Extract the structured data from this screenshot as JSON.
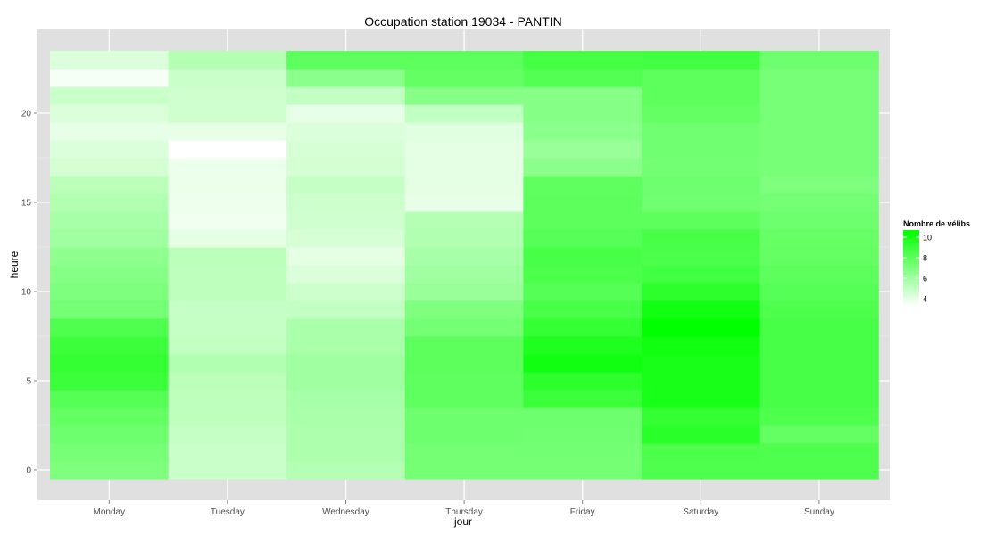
{
  "chart_data": {
    "type": "heatmap",
    "title": "Occupation station 19034 - PANTIN",
    "xlabel": "jour",
    "ylabel": "heure",
    "categories": [
      "Monday",
      "Tuesday",
      "Wednesday",
      "Thursday",
      "Friday",
      "Saturday",
      "Sunday"
    ],
    "y_ticks": [
      0,
      5,
      10,
      15,
      20
    ],
    "ylim": [
      -0.5,
      23.5
    ],
    "grid": true,
    "legend": {
      "title": "Nombre de vélibs",
      "ticks": [
        4,
        6,
        8,
        10
      ],
      "range": [
        3.2,
        10.7
      ],
      "low_color": "#ffffff",
      "high_color": "#00ff00",
      "placement": "right"
    },
    "values": [
      [
        7.0,
        4.8,
        5.4,
        7.3,
        7.3,
        8.4,
        8.4
      ],
      [
        7.2,
        4.8,
        5.6,
        7.3,
        7.3,
        8.5,
        8.4
      ],
      [
        7.5,
        4.9,
        5.6,
        7.5,
        7.4,
        9.5,
        7.8
      ],
      [
        7.8,
        5.1,
        5.7,
        7.5,
        7.5,
        9.2,
        8.4
      ],
      [
        8.2,
        5.1,
        5.8,
        7.9,
        9.0,
        10.0,
        8.6
      ],
      [
        9.0,
        5.2,
        6.0,
        7.9,
        9.4,
        10.0,
        8.6
      ],
      [
        9.2,
        5.5,
        6.0,
        8.0,
        10.2,
        10.0,
        8.6
      ],
      [
        9.0,
        5.0,
        5.7,
        8.0,
        9.8,
        10.2,
        8.6
      ],
      [
        8.4,
        4.9,
        5.7,
        7.3,
        9.2,
        10.7,
        8.6
      ],
      [
        7.3,
        4.9,
        5.0,
        7.0,
        8.6,
        10.2,
        8.4
      ],
      [
        7.0,
        5.1,
        4.7,
        6.2,
        8.2,
        9.4,
        8.2
      ],
      [
        6.8,
        5.1,
        4.3,
        6.0,
        8.5,
        8.8,
        8.0
      ],
      [
        6.5,
        5.2,
        4.0,
        5.8,
        8.6,
        8.5,
        7.8
      ],
      [
        6.0,
        4.0,
        4.4,
        5.5,
        8.2,
        8.6,
        7.7
      ],
      [
        5.8,
        3.6,
        4.6,
        5.4,
        8.0,
        8.0,
        7.5
      ],
      [
        5.5,
        3.7,
        4.7,
        3.9,
        8.0,
        7.4,
        7.3
      ],
      [
        5.2,
        3.8,
        4.9,
        4.0,
        7.9,
        7.5,
        7.0
      ],
      [
        4.5,
        3.8,
        4.5,
        4.0,
        6.6,
        7.3,
        7.2
      ],
      [
        4.3,
        3.2,
        4.4,
        4.0,
        6.2,
        7.4,
        7.2
      ],
      [
        3.9,
        3.9,
        4.3,
        4.1,
        6.6,
        7.4,
        7.2
      ],
      [
        4.3,
        4.6,
        3.9,
        5.0,
        6.8,
        7.8,
        7.2
      ],
      [
        4.8,
        4.6,
        5.0,
        6.8,
        6.8,
        8.0,
        7.2
      ],
      [
        3.5,
        4.8,
        6.6,
        7.8,
        8.3,
        8.0,
        7.2
      ],
      [
        4.3,
        5.4,
        8.0,
        8.0,
        8.7,
        8.8,
        7.5
      ]
    ]
  }
}
